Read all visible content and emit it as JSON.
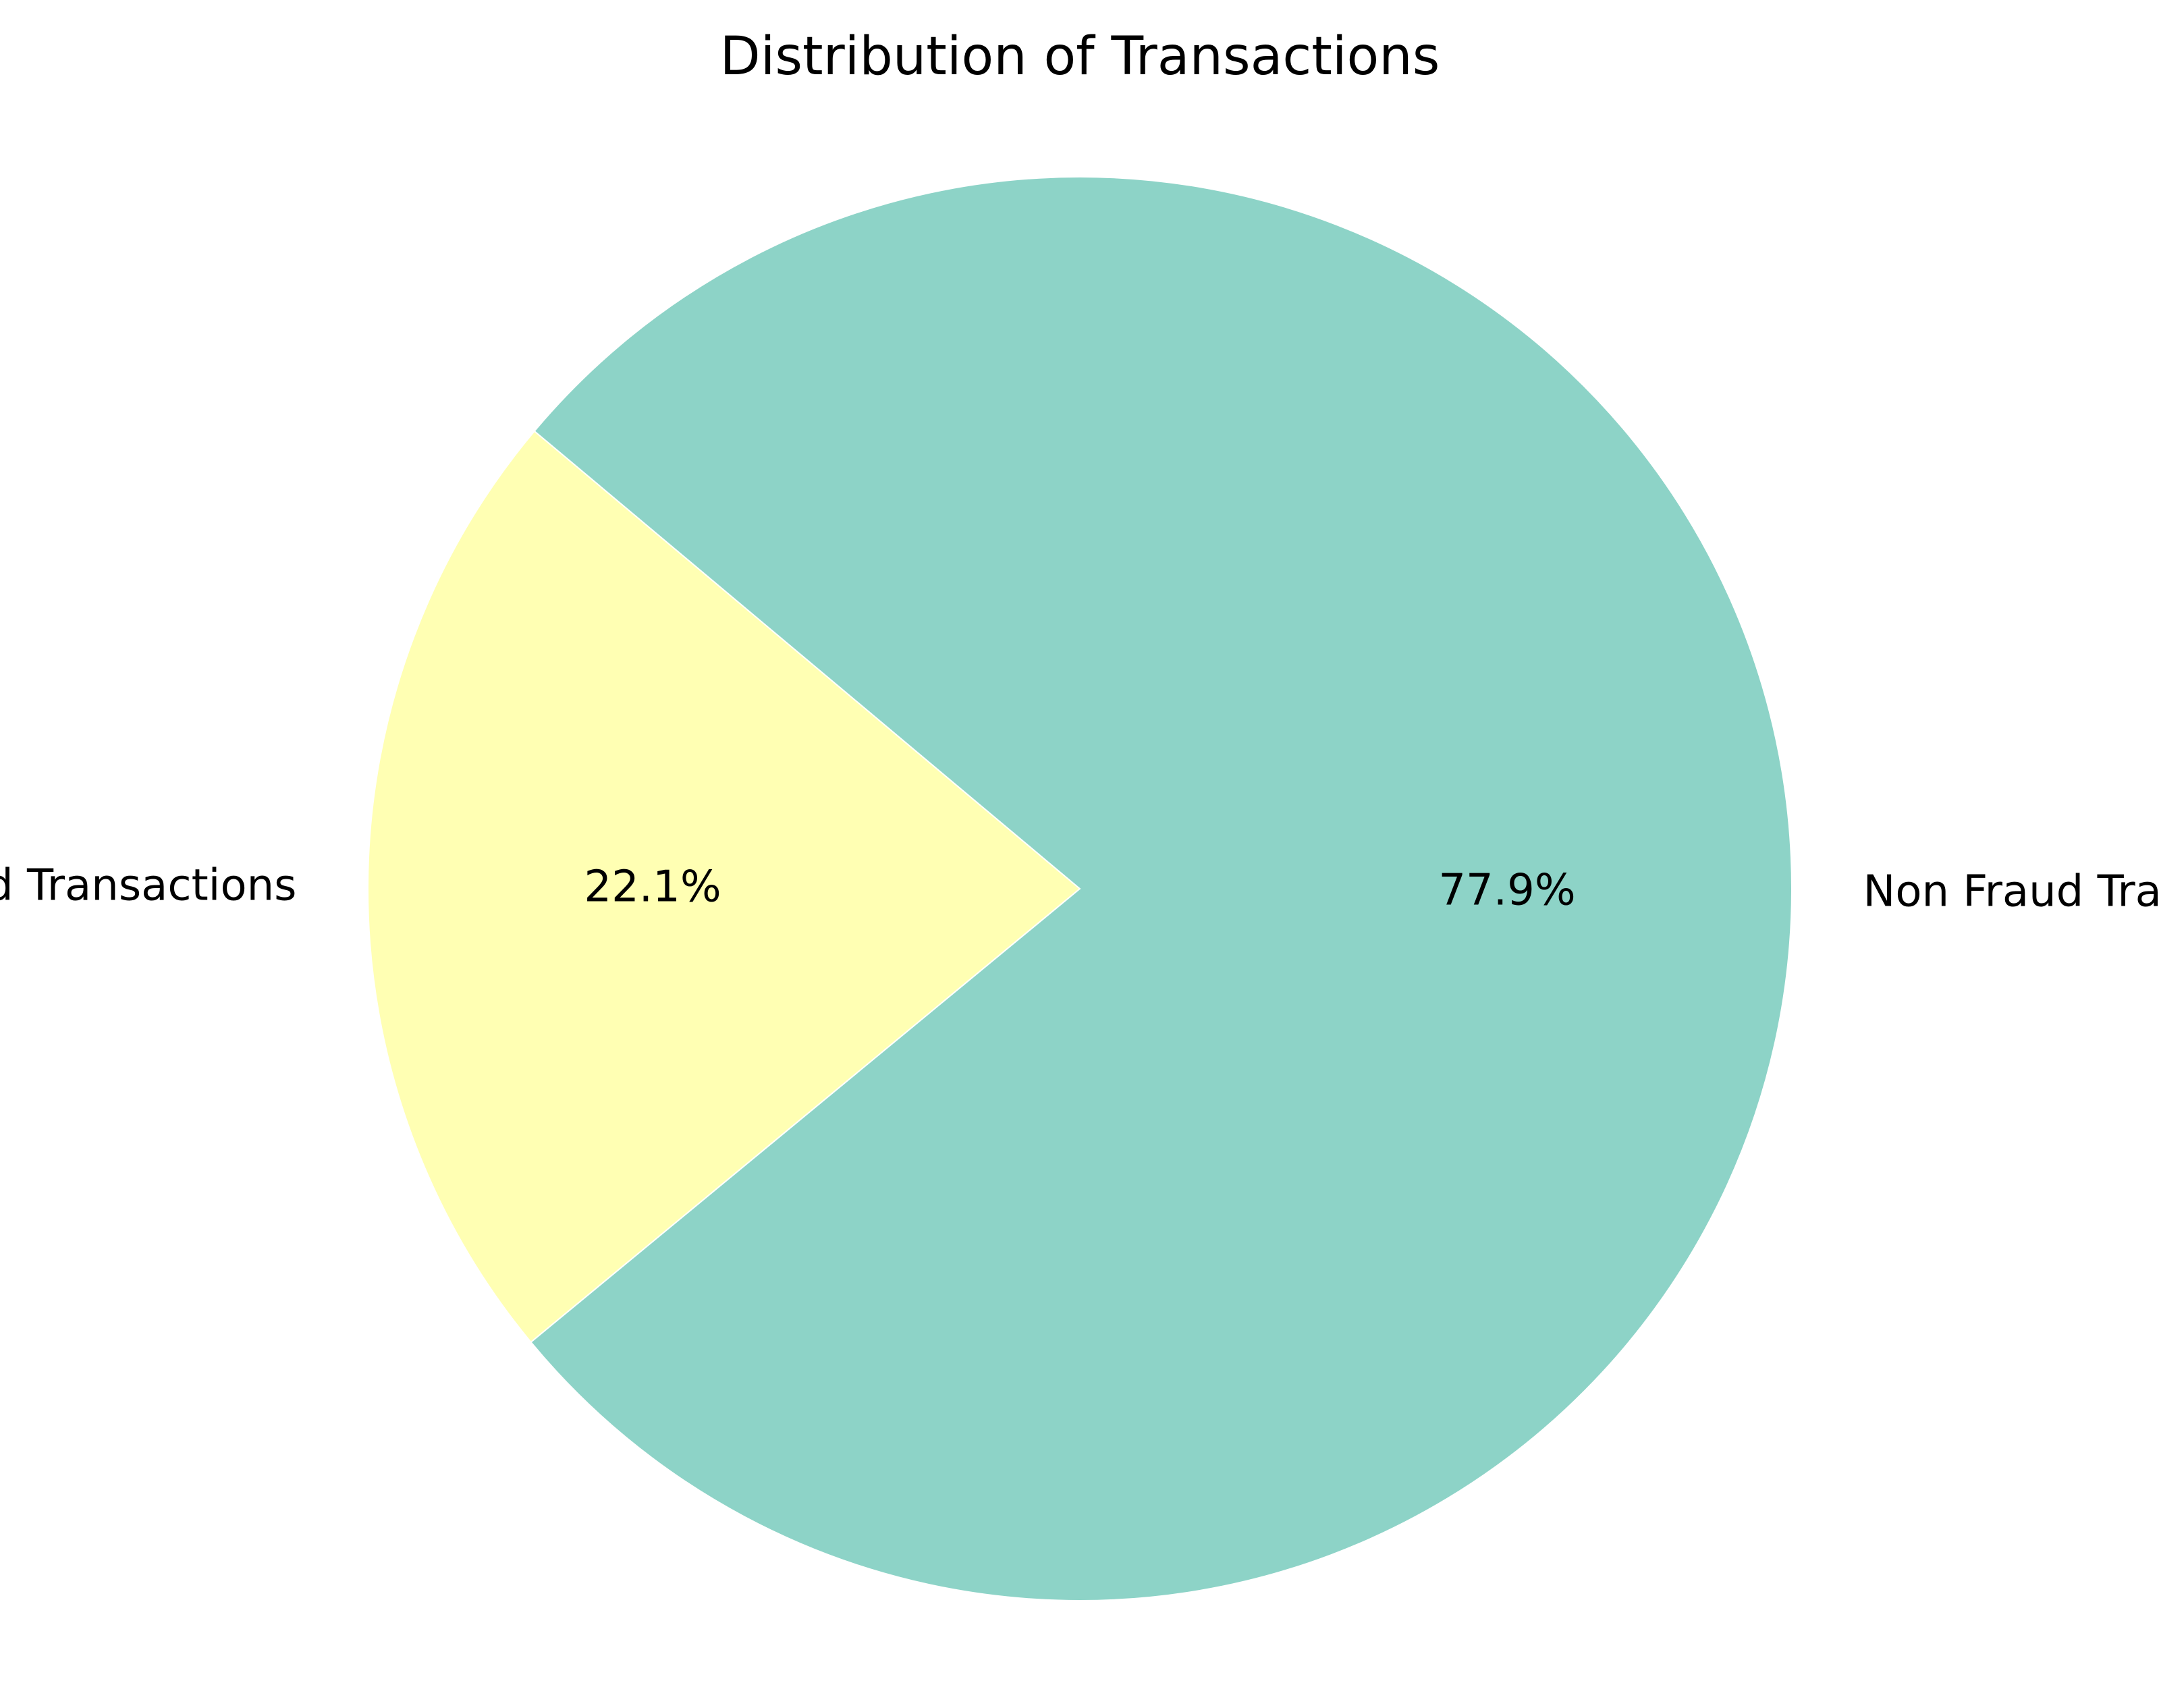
{
  "chart_data": {
    "type": "pie",
    "title": "Distribution of Transactions",
    "slices": [
      {
        "label": "Fraud Transactions",
        "value": 22.1,
        "pct_label": "22.1%",
        "color": "#ffffb3"
      },
      {
        "label": "Non Fraud Transactions",
        "value": 77.9,
        "pct_label": "77.9%",
        "color": "#8dd3c7"
      }
    ],
    "start_angle_deg": 140,
    "direction": "counterclockwise",
    "edge_color": "#ffffff"
  }
}
